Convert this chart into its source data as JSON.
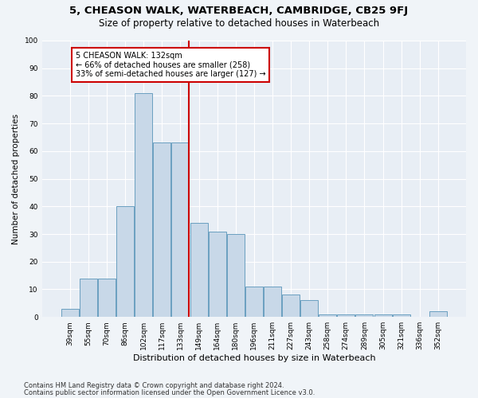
{
  "title1": "5, CHEASON WALK, WATERBEACH, CAMBRIDGE, CB25 9FJ",
  "title2": "Size of property relative to detached houses in Waterbeach",
  "xlabel": "Distribution of detached houses by size in Waterbeach",
  "ylabel": "Number of detached properties",
  "categories": [
    "39sqm",
    "55sqm",
    "70sqm",
    "86sqm",
    "102sqm",
    "117sqm",
    "133sqm",
    "149sqm",
    "164sqm",
    "180sqm",
    "196sqm",
    "211sqm",
    "227sqm",
    "243sqm",
    "258sqm",
    "274sqm",
    "289sqm",
    "305sqm",
    "321sqm",
    "336sqm",
    "352sqm"
  ],
  "values": [
    3,
    14,
    14,
    40,
    81,
    63,
    63,
    34,
    31,
    30,
    11,
    11,
    8,
    6,
    1,
    1,
    1,
    1,
    1,
    0,
    2
  ],
  "bar_color": "#c8d8e8",
  "bar_edge_color": "#6a9fc0",
  "vline_x_index": 6,
  "vline_color": "#cc0000",
  "annotation_text": "5 CHEASON WALK: 132sqm\n← 66% of detached houses are smaller (258)\n33% of semi-detached houses are larger (127) →",
  "annotation_box_color": "#ffffff",
  "annotation_box_edge": "#cc0000",
  "ylim": [
    0,
    100
  ],
  "yticks": [
    0,
    10,
    20,
    30,
    40,
    50,
    60,
    70,
    80,
    90,
    100
  ],
  "bg_color": "#e8eef5",
  "grid_color": "#ffffff",
  "footer1": "Contains HM Land Registry data © Crown copyright and database right 2024.",
  "footer2": "Contains public sector information licensed under the Open Government Licence v3.0.",
  "title1_fontsize": 9.5,
  "title2_fontsize": 8.5,
  "xlabel_fontsize": 8,
  "ylabel_fontsize": 7.5,
  "tick_fontsize": 6.5,
  "annot_fontsize": 7,
  "footer_fontsize": 6
}
